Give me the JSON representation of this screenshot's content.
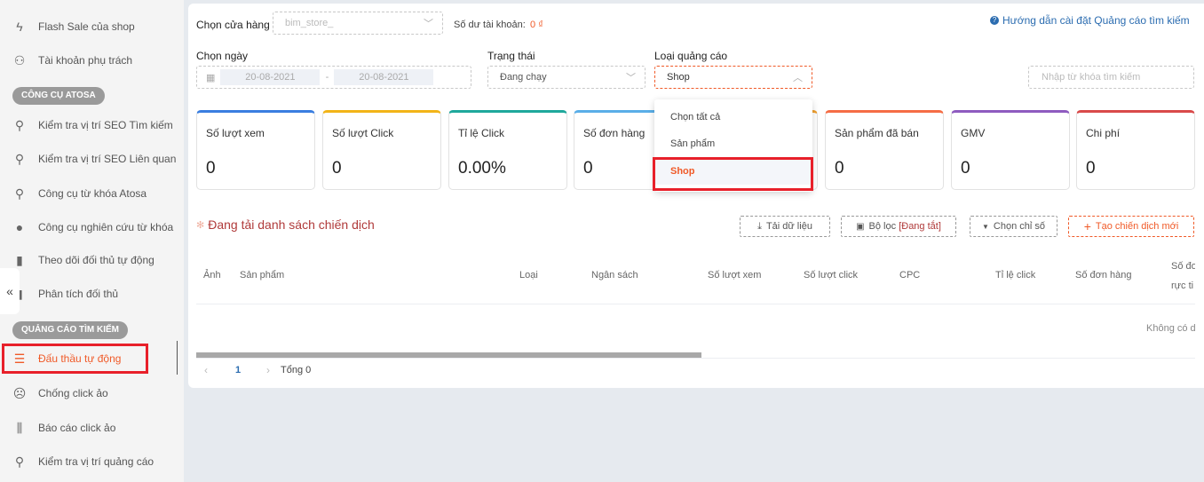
{
  "sidebar": {
    "items": [
      {
        "label": "Flash Sale của shop",
        "icon": "lightning-icon"
      },
      {
        "label": "Tài khoản phụ trách",
        "icon": "user-icon"
      },
      {
        "label": "Kiểm tra vị trí SEO Tìm kiếm",
        "icon": "search-icon"
      },
      {
        "label": "Kiểm tra vị trí SEO Liên quan",
        "icon": "search-icon"
      },
      {
        "label": "Công cụ từ khóa Atosa",
        "icon": "search-icon"
      },
      {
        "label": "Công cụ nghiên cứu từ khóa",
        "icon": "bulb-icon"
      },
      {
        "label": "Theo dõi đối thủ tự động",
        "icon": "bar-chart-icon"
      },
      {
        "label": "Phân tích đối thủ",
        "icon": "bar-chart-icon"
      },
      {
        "label": "Đấu thầu tự động",
        "icon": "menu-icon",
        "active": true
      },
      {
        "label": "Chống click ảo",
        "icon": "sad-face-icon"
      },
      {
        "label": "Báo cáo click ảo",
        "icon": "report-icon"
      },
      {
        "label": "Kiểm tra vị trí quảng cáo",
        "icon": "search-icon"
      }
    ],
    "sections": [
      "CÔNG CỤ ATOSA",
      "QUẢNG CÁO TÌM KIẾM"
    ],
    "collapse_icon": "«"
  },
  "filters": {
    "store_label": "Chọn cửa hàng",
    "store_value": "bim_store_",
    "balance_label": "Số dư tài khoản:",
    "balance_value": "0 ₫",
    "help_link": "Hướng dẫn cài đặt Quảng cáo tìm kiếm",
    "date_label": "Chọn ngày",
    "date_from": "20-08-2021",
    "date_sep": "-",
    "date_to": "20-08-2021",
    "status_label": "Trạng thái",
    "status_value": "Đang chạy",
    "type_label": "Loại quảng cáo",
    "type_value": "Shop",
    "search_placeholder": "Nhập từ khóa tìm kiếm"
  },
  "dropdown": {
    "options": [
      "Chọn tất cả",
      "Sản phẩm",
      "Shop"
    ],
    "selected": "Shop"
  },
  "cards": [
    {
      "title": "Số lượt xem",
      "value": "0",
      "color": "#3a7ee0"
    },
    {
      "title": "Số lượt Click",
      "value": "0",
      "color": "#f2b418"
    },
    {
      "title": "Tỉ lệ Click",
      "value": "0.00%",
      "color": "#1fa89c"
    },
    {
      "title": "Số đơn hàng",
      "value": "0",
      "color": "#5aaee8"
    },
    {
      "title": "",
      "value": "",
      "color": "#f0a030"
    },
    {
      "title": "Sản phẩm đã bán",
      "value": "0",
      "color": "#f56d45"
    },
    {
      "title": "GMV",
      "value": "0",
      "color": "#8e5bbf"
    },
    {
      "title": "Chi phí",
      "value": "0",
      "color": "#d94a4a"
    }
  ],
  "campaigns": {
    "loading_title": "Đang tải danh sách chiến dịch",
    "buttons": {
      "download": "Tải dữ liệu",
      "filter_prefix": "Bộ lọc ",
      "filter_state": "[Đang tắt]",
      "metrics": "Chọn chỉ số",
      "create": "Tạo chiến dịch mới"
    },
    "columns": [
      "Ảnh",
      "Sản phẩm",
      "Loại",
      "Ngân sách",
      "Số lượt xem",
      "Số lượt click",
      "CPC",
      "Tỉ lệ click",
      "Số đơn hàng",
      "Số đơ",
      "rực ti"
    ],
    "empty": "Không có d",
    "pagination": {
      "page": "1",
      "total": "Tổng 0"
    }
  },
  "colors": {
    "accent": "#f05a28",
    "active_text": "#f05a28",
    "link": "#2b6cb0",
    "highlight_box": "#e8202a"
  }
}
